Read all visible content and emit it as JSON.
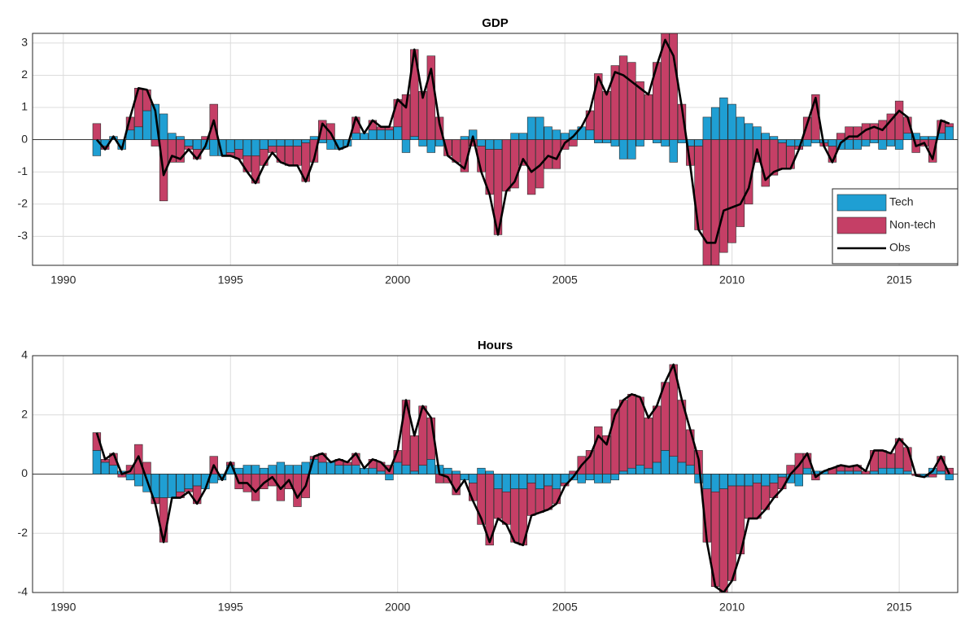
{
  "chart_data": [
    {
      "type": "bar",
      "stacked": true,
      "title": "GDP",
      "legend": "lower right",
      "grid": true,
      "x": [
        1991,
        1991.25,
        1991.5,
        1991.75,
        1992,
        1992.25,
        1992.5,
        1992.75,
        1993,
        1993.25,
        1993.5,
        1993.75,
        1994,
        1994.25,
        1994.5,
        1994.75,
        1995,
        1995.25,
        1995.5,
        1995.75,
        1996,
        1996.25,
        1996.5,
        1996.75,
        1997,
        1997.25,
        1997.5,
        1997.75,
        1998,
        1998.25,
        1998.5,
        1998.75,
        1999,
        1999.25,
        1999.5,
        1999.75,
        2000,
        2000.25,
        2000.5,
        2000.75,
        2001,
        2001.25,
        2001.5,
        2001.75,
        2002,
        2002.25,
        2002.5,
        2002.75,
        2003,
        2003.25,
        2003.5,
        2003.75,
        2004,
        2004.25,
        2004.5,
        2004.75,
        2005,
        2005.25,
        2005.5,
        2005.75,
        2006,
        2006.25,
        2006.5,
        2006.75,
        2007,
        2007.25,
        2007.5,
        2007.75,
        2008,
        2008.25,
        2008.5,
        2008.75,
        2009,
        2009.25,
        2009.5,
        2009.75,
        2010,
        2010.25,
        2010.5,
        2010.75,
        2011,
        2011.25,
        2011.5,
        2011.75,
        2012,
        2012.25,
        2012.5,
        2012.75,
        2013,
        2013.25,
        2013.5,
        2013.75,
        2014,
        2014.25,
        2014.5,
        2014.75,
        2015,
        2015.25,
        2015.5,
        2015.75,
        2016,
        2016.25,
        2016.5
      ],
      "xlim": [
        1989.08,
        2016.75
      ],
      "xticks": [
        1990,
        1995,
        2000,
        2005,
        2010,
        2015
      ],
      "ylim": [
        -3.9,
        3.3
      ],
      "yticks": [
        -3,
        -2,
        -1,
        0,
        1,
        2,
        3
      ],
      "series": [
        {
          "name": "Tech",
          "color": "#1f9fd3",
          "values": [
            -0.5,
            -0.2,
            0.1,
            -0.3,
            0.3,
            0.4,
            0.9,
            1.1,
            0.8,
            0.2,
            0.1,
            -0.2,
            -0.3,
            -0.3,
            -0.5,
            -0.5,
            -0.4,
            -0.3,
            -0.5,
            -0.5,
            -0.3,
            -0.2,
            -0.2,
            -0.2,
            -0.2,
            -0.1,
            0.1,
            -0.1,
            -0.3,
            -0.3,
            -0.2,
            0.2,
            0.2,
            0.3,
            0.3,
            0.3,
            0.4,
            -0.4,
            0.1,
            -0.2,
            -0.4,
            -0.2,
            0,
            0,
            0.1,
            0.3,
            -0.2,
            -0.3,
            -0.3,
            0,
            0.2,
            0.2,
            0.7,
            0.7,
            0.4,
            0.3,
            0.2,
            0.3,
            0.4,
            0.3,
            -0.1,
            -0.1,
            -0.2,
            -0.6,
            -0.6,
            -0.2,
            0,
            -0.1,
            -0.2,
            -0.7,
            -0.1,
            -0.2,
            -0.2,
            0.7,
            1.0,
            1.3,
            1.1,
            0.7,
            0.5,
            0.4,
            0.2,
            0.1,
            -0.1,
            -0.2,
            -0.2,
            -0.2,
            -0.1,
            -0.1,
            -0.2,
            -0.3,
            -0.3,
            -0.3,
            -0.2,
            -0.1,
            -0.3,
            -0.2,
            -0.3,
            0.2,
            0.2,
            0.1,
            0.1,
            0.2,
            0.4
          ]
        },
        {
          "name": "Non-tech",
          "color": "#c53f66",
          "values": [
            0.5,
            -0.1,
            0,
            0,
            0.4,
            1.2,
            0.65,
            -0.2,
            -1.9,
            -0.7,
            -0.7,
            -0.1,
            -0.3,
            0.1,
            1.1,
            0,
            -0.1,
            -0.3,
            -0.5,
            -0.85,
            -0.5,
            -0.2,
            -0.5,
            -0.6,
            -0.6,
            -1.2,
            -0.7,
            0.6,
            0.5,
            0,
            0,
            0.5,
            0,
            0.3,
            0.1,
            0.1,
            0.85,
            1.4,
            2.7,
            1.5,
            2.6,
            0.7,
            -0.5,
            -0.7,
            -1.0,
            -0.2,
            -0.8,
            -1.4,
            -2.65,
            -1.6,
            -1.5,
            -0.8,
            -1.7,
            -1.5,
            -0.9,
            -0.9,
            -0.3,
            -0.2,
            0,
            0.6,
            2.05,
            1.5,
            2.3,
            2.6,
            2.4,
            1.8,
            1.4,
            2.4,
            3.3,
            3.3,
            1.1,
            -0.6,
            -2.6,
            -3.9,
            -4.2,
            -3.5,
            -3.2,
            -2.7,
            -2.0,
            -0.7,
            -1.45,
            -1.1,
            -0.8,
            -0.7,
            -0.1,
            0.7,
            1.4,
            -0.1,
            -0.5,
            0.2,
            0.4,
            0.4,
            0.5,
            0.5,
            0.6,
            0.8,
            1.2,
            0.5,
            -0.4,
            -0.2,
            -0.7,
            0.4,
            0.1
          ]
        },
        {
          "name": "Obs",
          "color": "#000000",
          "type": "line",
          "values": [
            0,
            -0.3,
            0.1,
            -0.3,
            0.7,
            1.6,
            1.55,
            0.9,
            -1.1,
            -0.5,
            -0.6,
            -0.3,
            -0.6,
            -0.2,
            0.6,
            -0.5,
            -0.5,
            -0.6,
            -1.0,
            -1.35,
            -0.8,
            -0.4,
            -0.7,
            -0.8,
            -0.8,
            -1.3,
            -0.6,
            0.5,
            0.2,
            -0.3,
            -0.2,
            0.7,
            0.2,
            0.6,
            0.4,
            0.4,
            1.25,
            1.0,
            2.8,
            1.3,
            2.2,
            0.5,
            -0.5,
            -0.7,
            -0.9,
            0.1,
            -1.0,
            -1.7,
            -2.95,
            -1.6,
            -1.3,
            -0.6,
            -1.0,
            -0.8,
            -0.5,
            -0.6,
            -0.1,
            0.1,
            0.4,
            0.9,
            1.95,
            1.4,
            2.1,
            2.0,
            1.8,
            1.6,
            1.4,
            2.3,
            3.1,
            2.6,
            1.0,
            -0.8,
            -2.8,
            -3.2,
            -3.2,
            -2.2,
            -2.1,
            -2.0,
            -1.5,
            -0.3,
            -1.25,
            -1.0,
            -0.9,
            -0.9,
            -0.3,
            0.5,
            1.3,
            -0.2,
            -0.7,
            -0.1,
            0.1,
            0.1,
            0.3,
            0.4,
            0.3,
            0.6,
            0.9,
            0.7,
            -0.2,
            -0.1,
            -0.6,
            0.6,
            0.5
          ]
        }
      ]
    },
    {
      "type": "bar",
      "stacked": true,
      "title": "Hours",
      "grid": true,
      "x": [
        1991,
        1991.25,
        1991.5,
        1991.75,
        1992,
        1992.25,
        1992.5,
        1992.75,
        1993,
        1993.25,
        1993.5,
        1993.75,
        1994,
        1994.25,
        1994.5,
        1994.75,
        1995,
        1995.25,
        1995.5,
        1995.75,
        1996,
        1996.25,
        1996.5,
        1996.75,
        1997,
        1997.25,
        1997.5,
        1997.75,
        1998,
        1998.25,
        1998.5,
        1998.75,
        1999,
        1999.25,
        1999.5,
        1999.75,
        2000,
        2000.25,
        2000.5,
        2000.75,
        2001,
        2001.25,
        2001.5,
        2001.75,
        2002,
        2002.25,
        2002.5,
        2002.75,
        2003,
        2003.25,
        2003.5,
        2003.75,
        2004,
        2004.25,
        2004.5,
        2004.75,
        2005,
        2005.25,
        2005.5,
        2005.75,
        2006,
        2006.25,
        2006.5,
        2006.75,
        2007,
        2007.25,
        2007.5,
        2007.75,
        2008,
        2008.25,
        2008.5,
        2008.75,
        2009,
        2009.25,
        2009.5,
        2009.75,
        2010,
        2010.25,
        2010.5,
        2010.75,
        2011,
        2011.25,
        2011.5,
        2011.75,
        2012,
        2012.25,
        2012.5,
        2012.75,
        2013,
        2013.25,
        2013.5,
        2013.75,
        2014,
        2014.25,
        2014.5,
        2014.75,
        2015,
        2015.25,
        2015.5,
        2015.75,
        2016,
        2016.25,
        2016.5
      ],
      "xlim": [
        1989.08,
        2016.75
      ],
      "xticks": [
        1990,
        1995,
        2000,
        2005,
        2010,
        2015
      ],
      "ylim": [
        -4,
        4
      ],
      "yticks": [
        -4,
        -2,
        0,
        2,
        4
      ],
      "series": [
        {
          "name": "Tech",
          "color": "#1f9fd3",
          "values": [
            0.8,
            0.4,
            0.3,
            0.1,
            -0.2,
            -0.4,
            -0.6,
            -0.8,
            -0.8,
            -0.8,
            -0.6,
            -0.5,
            -0.4,
            -0.5,
            -0.3,
            -0.2,
            0.3,
            0.2,
            0.3,
            0.3,
            0.2,
            0.3,
            0.4,
            0.3,
            0.3,
            0.4,
            0.5,
            0.4,
            0.4,
            0.3,
            0.3,
            0.3,
            0.2,
            0.2,
            0.1,
            -0.2,
            0.4,
            0.3,
            0.1,
            0.3,
            0.5,
            0.3,
            0.2,
            0.1,
            -0.2,
            -0.3,
            0.2,
            0.1,
            -0.5,
            -0.6,
            -0.5,
            -0.5,
            -0.3,
            -0.5,
            -0.4,
            -0.5,
            -0.3,
            -0.2,
            -0.3,
            -0.2,
            -0.3,
            -0.3,
            -0.2,
            0.1,
            0.2,
            0.3,
            0.2,
            0.4,
            0.8,
            0.6,
            0.4,
            0.3,
            -0.3,
            -0.5,
            -0.6,
            -0.5,
            -0.4,
            -0.4,
            -0.4,
            -0.3,
            -0.4,
            -0.3,
            -0.1,
            -0.3,
            -0.4,
            0.2,
            0.1,
            0.1,
            0,
            0.1,
            0.1,
            0.1,
            0,
            0.1,
            0.2,
            0.2,
            0.2,
            0.1,
            0,
            -0.1,
            0.2,
            0.1,
            -0.2
          ]
        },
        {
          "name": "Non-tech",
          "color": "#c53f66",
          "values": [
            0.6,
            0.1,
            0.4,
            -0.1,
            0.3,
            1.0,
            0.4,
            -0.2,
            -1.5,
            0,
            -0.2,
            -0.1,
            -0.6,
            0,
            0.6,
            0,
            0.1,
            -0.5,
            -0.6,
            -0.9,
            -0.5,
            -0.4,
            -0.9,
            -0.5,
            -1.1,
            -0.8,
            0.1,
            0.3,
            0,
            0.2,
            0.1,
            0.4,
            0,
            0.3,
            0.3,
            0.3,
            0.4,
            2.2,
            1.2,
            2.0,
            1.4,
            -0.3,
            -0.3,
            -0.7,
            0,
            -0.6,
            -1.7,
            -2.4,
            -1.0,
            -1.1,
            -1.8,
            -1.9,
            -1.1,
            -0.8,
            -0.8,
            -0.5,
            -0.1,
            0.1,
            0.6,
            0.8,
            1.6,
            1.3,
            2.2,
            2.4,
            2.5,
            2.3,
            1.7,
            1.9,
            2.3,
            3.1,
            2.1,
            1.2,
            0.8,
            -1.8,
            -3.2,
            -3.5,
            -3.2,
            -2.3,
            -1.1,
            -1.2,
            -0.8,
            -0.5,
            -0.4,
            0.3,
            0.7,
            0.5,
            -0.2,
            0,
            0.2,
            0.2,
            0.15,
            0.2,
            0.1,
            0.7,
            0.6,
            0.5,
            1.0,
            0.8,
            -0.05,
            0,
            -0.1,
            0.5,
            0.2
          ]
        },
        {
          "name": "Obs",
          "color": "#000000",
          "type": "line",
          "values": [
            1.4,
            0.5,
            0.7,
            0,
            0.1,
            0.6,
            -0.2,
            -1.0,
            -2.3,
            -0.8,
            -0.8,
            -0.6,
            -1.0,
            -0.5,
            0.3,
            -0.2,
            0.4,
            -0.3,
            -0.3,
            -0.6,
            -0.3,
            -0.1,
            -0.5,
            -0.2,
            -0.8,
            -0.4,
            0.6,
            0.7,
            0.4,
            0.5,
            0.4,
            0.7,
            0.2,
            0.5,
            0.4,
            0.1,
            0.8,
            2.5,
            1.3,
            2.3,
            1.9,
            0,
            -0.1,
            -0.6,
            -0.2,
            -0.9,
            -1.5,
            -2.3,
            -1.5,
            -1.7,
            -2.3,
            -2.4,
            -1.4,
            -1.3,
            -1.2,
            -1.0,
            -0.4,
            -0.1,
            0.3,
            0.6,
            1.3,
            1.0,
            2.0,
            2.5,
            2.7,
            2.6,
            1.9,
            2.3,
            3.1,
            3.7,
            2.5,
            1.5,
            0.5,
            -2.3,
            -3.8,
            -4.0,
            -3.6,
            -2.7,
            -1.5,
            -1.5,
            -1.2,
            -0.8,
            -0.5,
            0,
            0.3,
            0.7,
            -0.1,
            0.1,
            0.2,
            0.3,
            0.25,
            0.3,
            0.1,
            0.8,
            0.8,
            0.7,
            1.2,
            0.9,
            -0.05,
            -0.1,
            0.1,
            0.6,
            0
          ]
        }
      ]
    }
  ]
}
